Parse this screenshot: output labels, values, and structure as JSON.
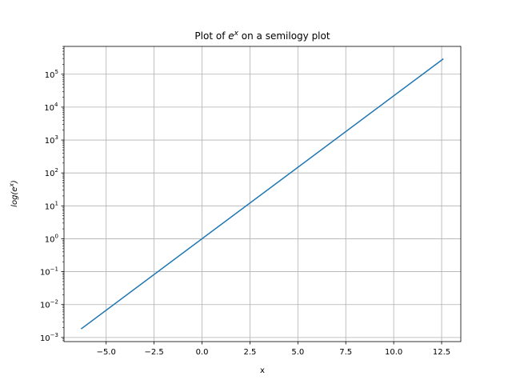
{
  "chart_data": {
    "type": "line",
    "title_prefix": "Plot of ",
    "title_base": "e",
    "title_sup": "x",
    "title_suffix": " on a semilogy plot",
    "xlabel": "x",
    "ylabel_prefix": "log(",
    "ylabel_base": "e",
    "ylabel_sup": "x",
    "ylabel_suffix": ")",
    "yscale": "log",
    "grid": true,
    "xlim": [
      -7.2,
      13.5
    ],
    "ylim": [
      0.00075,
      700000
    ],
    "xticks": [
      {
        "value": -5.0,
        "label": "−5.0"
      },
      {
        "value": -2.5,
        "label": "−2.5"
      },
      {
        "value": 0.0,
        "label": "0.0"
      },
      {
        "value": 2.5,
        "label": "2.5"
      },
      {
        "value": 5.0,
        "label": "5.0"
      },
      {
        "value": 7.5,
        "label": "7.5"
      },
      {
        "value": 10.0,
        "label": "10.0"
      },
      {
        "value": 12.5,
        "label": "12.5"
      }
    ],
    "yticks": [
      {
        "value": 0.001,
        "base": "10",
        "exp": "−3"
      },
      {
        "value": 0.01,
        "base": "10",
        "exp": "−2"
      },
      {
        "value": 0.1,
        "base": "10",
        "exp": "−1"
      },
      {
        "value": 1,
        "base": "10",
        "exp": "0"
      },
      {
        "value": 10,
        "base": "10",
        "exp": "1"
      },
      {
        "value": 100,
        "base": "10",
        "exp": "2"
      },
      {
        "value": 1000,
        "base": "10",
        "exp": "3"
      },
      {
        "value": 10000,
        "base": "10",
        "exp": "4"
      },
      {
        "value": 100000,
        "base": "10",
        "exp": "5"
      }
    ],
    "series": [
      {
        "color": "#1f77b4",
        "x": [
          -6.2832,
          12.5664
        ],
        "y": [
          0.001867,
          286751
        ]
      }
    ]
  }
}
